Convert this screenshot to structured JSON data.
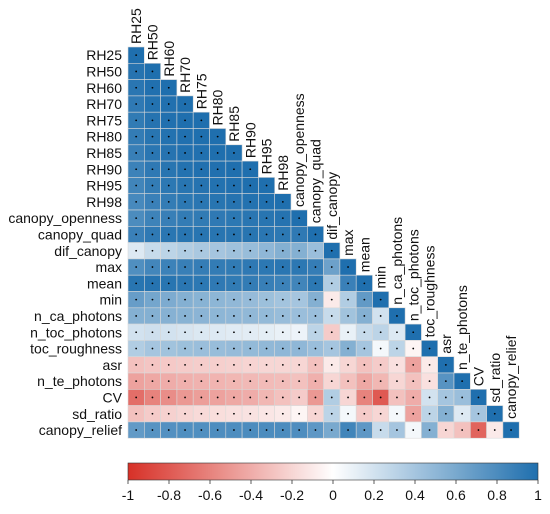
{
  "chart_data": {
    "type": "heatmap",
    "subtype": "correlation-lower-triangle",
    "variables": [
      "RH25",
      "RH50",
      "RH60",
      "RH70",
      "RH75",
      "RH80",
      "RH85",
      "RH90",
      "RH95",
      "RH98",
      "canopy_openness",
      "canopy_quad",
      "dif_canopy",
      "max",
      "mean",
      "min",
      "n_ca_photons",
      "n_toc_photons",
      "toc_roughness",
      "asr",
      "n_te_photons",
      "CV",
      "sd_ratio",
      "canopy_relief"
    ],
    "matrix": [
      [
        1
      ],
      [
        0.97,
        1
      ],
      [
        0.95,
        0.99,
        1
      ],
      [
        0.93,
        0.98,
        0.99,
        1
      ],
      [
        0.92,
        0.97,
        0.99,
        1.0,
        1
      ],
      [
        0.91,
        0.96,
        0.98,
        0.99,
        1.0,
        1
      ],
      [
        0.89,
        0.95,
        0.97,
        0.99,
        0.99,
        1.0,
        1
      ],
      [
        0.87,
        0.93,
        0.96,
        0.98,
        0.99,
        0.99,
        1.0,
        1
      ],
      [
        0.85,
        0.91,
        0.94,
        0.96,
        0.97,
        0.98,
        0.99,
        1.0,
        1
      ],
      [
        0.82,
        0.88,
        0.91,
        0.94,
        0.95,
        0.96,
        0.97,
        0.98,
        0.99,
        1
      ],
      [
        0.8,
        0.86,
        0.89,
        0.91,
        0.92,
        0.93,
        0.94,
        0.95,
        0.96,
        0.97,
        1
      ],
      [
        0.88,
        0.93,
        0.95,
        0.96,
        0.96,
        0.96,
        0.96,
        0.96,
        0.95,
        0.94,
        0.93,
        1
      ],
      [
        0.15,
        0.25,
        0.3,
        0.35,
        0.38,
        0.4,
        0.43,
        0.46,
        0.5,
        0.55,
        0.55,
        0.45,
        1
      ],
      [
        0.78,
        0.84,
        0.87,
        0.89,
        0.9,
        0.91,
        0.92,
        0.93,
        0.94,
        0.95,
        0.94,
        0.9,
        0.65,
        1
      ],
      [
        0.96,
        0.97,
        0.96,
        0.95,
        0.94,
        0.93,
        0.92,
        0.91,
        0.89,
        0.87,
        0.85,
        0.94,
        0.35,
        0.88,
        1
      ],
      [
        0.68,
        0.62,
        0.58,
        0.55,
        0.53,
        0.51,
        0.49,
        0.47,
        0.44,
        0.41,
        0.4,
        0.55,
        -0.1,
        0.35,
        0.7,
        1
      ],
      [
        0.55,
        0.55,
        0.54,
        0.53,
        0.52,
        0.51,
        0.5,
        0.49,
        0.48,
        0.46,
        0.45,
        0.45,
        0.25,
        0.42,
        0.55,
        0.2,
        1
      ],
      [
        0.2,
        0.22,
        0.2,
        0.18,
        0.16,
        0.15,
        0.14,
        0.13,
        0.12,
        0.1,
        0.08,
        0.3,
        -0.25,
        0.1,
        0.25,
        0.3,
        0.15,
        1
      ],
      [
        0.35,
        0.4,
        0.42,
        0.44,
        0.45,
        0.46,
        0.47,
        0.48,
        0.49,
        0.5,
        0.5,
        0.45,
        0.4,
        0.55,
        0.4,
        0.05,
        0.3,
        -0.05,
        1
      ],
      [
        -0.3,
        -0.28,
        -0.26,
        -0.25,
        -0.24,
        -0.23,
        -0.22,
        -0.21,
        -0.2,
        -0.2,
        -0.2,
        -0.3,
        -0.1,
        -0.2,
        -0.3,
        -0.25,
        -0.15,
        -0.45,
        -0.1,
        1
      ],
      [
        -0.45,
        -0.42,
        -0.4,
        -0.38,
        -0.37,
        -0.36,
        -0.35,
        -0.34,
        -0.33,
        -0.32,
        -0.3,
        -0.38,
        -0.2,
        -0.3,
        -0.42,
        -0.35,
        -0.2,
        -0.3,
        -0.15,
        0.75,
        1
      ],
      [
        -0.7,
        -0.6,
        -0.55,
        -0.5,
        -0.47,
        -0.45,
        -0.42,
        -0.4,
        -0.35,
        -0.3,
        -0.25,
        -0.5,
        0.35,
        -0.2,
        -0.6,
        -0.8,
        -0.3,
        -0.4,
        0.2,
        0.4,
        0.45,
        1
      ],
      [
        -0.3,
        -0.25,
        -0.22,
        -0.2,
        -0.18,
        -0.16,
        -0.15,
        -0.14,
        -0.12,
        -0.1,
        -0.05,
        -0.2,
        0.3,
        0.05,
        -0.25,
        -0.2,
        0.05,
        -0.45,
        0.3,
        0.55,
        0.15,
        0.4,
        1
      ],
      [
        0.7,
        0.75,
        0.77,
        0.78,
        0.78,
        0.79,
        0.79,
        0.8,
        0.8,
        0.8,
        0.79,
        0.72,
        0.6,
        0.85,
        0.72,
        0.25,
        0.4,
        0.05,
        0.55,
        -0.2,
        -0.3,
        -0.75,
        -0.1,
        1
      ]
    ],
    "colorbar": {
      "range": [
        -1,
        1
      ],
      "ticks": [
        "-1",
        "-0.8",
        "-0.6",
        "-0.4",
        "-0.2",
        "0",
        "0.2",
        "0.4",
        "0.6",
        "0.8",
        "1"
      ],
      "orientation": "horizontal",
      "low_color": "#d73027",
      "mid_color": "#ffffff",
      "high_color": "#1f6fae"
    },
    "cell_marker": "dot",
    "title": "",
    "xlabel": "",
    "ylabel": ""
  }
}
